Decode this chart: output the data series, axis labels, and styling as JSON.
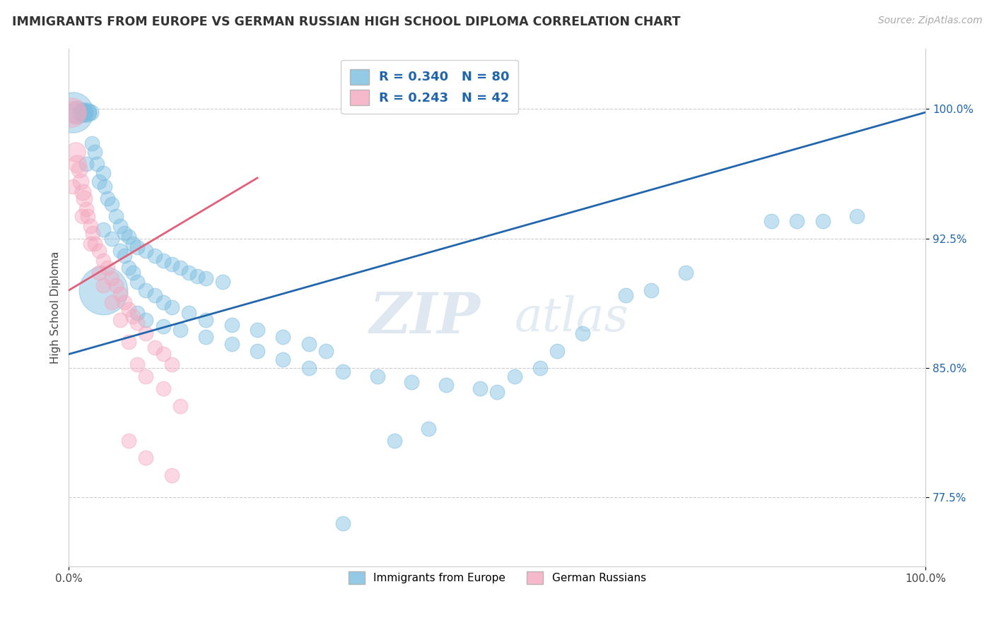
{
  "title": "IMMIGRANTS FROM EUROPE VS GERMAN RUSSIAN HIGH SCHOOL DIPLOMA CORRELATION CHART",
  "source": "Source: ZipAtlas.com",
  "ylabel": "High School Diploma",
  "ytick_labels": [
    "77.5%",
    "85.0%",
    "92.5%",
    "100.0%"
  ],
  "ytick_values": [
    0.775,
    0.85,
    0.925,
    1.0
  ],
  "xtick_labels": [
    "0.0%",
    "100.0%"
  ],
  "xtick_values": [
    0.0,
    1.0
  ],
  "xmin": 0.0,
  "xmax": 1.0,
  "ymin": 0.735,
  "ymax": 1.035,
  "blue_r": 0.34,
  "blue_n": 80,
  "pink_r": 0.243,
  "pink_n": 42,
  "legend_label_blue": "Immigrants from Europe",
  "legend_label_pink": "German Russians",
  "blue_color": "#7bbde0",
  "pink_color": "#f4a8bf",
  "blue_line_color": "#2166ac",
  "pink_line_color": "#e0607a",
  "watermark_zip": "ZIP",
  "watermark_atlas": "atlas",
  "background_color": "#ffffff",
  "blue_line_x": [
    0.0,
    1.0
  ],
  "blue_line_y": [
    0.858,
    0.998
  ],
  "pink_line_x": [
    0.0,
    0.22
  ],
  "pink_line_y": [
    0.895,
    0.96
  ],
  "blue_points": [
    [
      0.005,
      0.998,
      25
    ],
    [
      0.01,
      0.998,
      14
    ],
    [
      0.015,
      0.998,
      12
    ],
    [
      0.016,
      0.998,
      11
    ],
    [
      0.018,
      0.998,
      10
    ],
    [
      0.02,
      0.998,
      12
    ],
    [
      0.023,
      0.998,
      10
    ],
    [
      0.025,
      0.998,
      10
    ],
    [
      0.027,
      0.98,
      9
    ],
    [
      0.03,
      0.975,
      9
    ],
    [
      0.033,
      0.968,
      9
    ],
    [
      0.04,
      0.963,
      9
    ],
    [
      0.042,
      0.955,
      9
    ],
    [
      0.045,
      0.948,
      9
    ],
    [
      0.05,
      0.945,
      9
    ],
    [
      0.055,
      0.938,
      9
    ],
    [
      0.06,
      0.932,
      9
    ],
    [
      0.065,
      0.928,
      9
    ],
    [
      0.07,
      0.926,
      9
    ],
    [
      0.075,
      0.922,
      9
    ],
    [
      0.08,
      0.92,
      9
    ],
    [
      0.09,
      0.918,
      9
    ],
    [
      0.1,
      0.915,
      9
    ],
    [
      0.11,
      0.912,
      9
    ],
    [
      0.12,
      0.91,
      9
    ],
    [
      0.13,
      0.908,
      9
    ],
    [
      0.14,
      0.905,
      9
    ],
    [
      0.15,
      0.903,
      9
    ],
    [
      0.16,
      0.902,
      9
    ],
    [
      0.18,
      0.9,
      9
    ],
    [
      0.02,
      0.968,
      9
    ],
    [
      0.035,
      0.958,
      9
    ],
    [
      0.04,
      0.93,
      9
    ],
    [
      0.05,
      0.925,
      9
    ],
    [
      0.06,
      0.918,
      9
    ],
    [
      0.065,
      0.915,
      9
    ],
    [
      0.07,
      0.908,
      9
    ],
    [
      0.075,
      0.905,
      9
    ],
    [
      0.08,
      0.9,
      9
    ],
    [
      0.09,
      0.895,
      9
    ],
    [
      0.1,
      0.892,
      9
    ],
    [
      0.11,
      0.888,
      9
    ],
    [
      0.12,
      0.885,
      9
    ],
    [
      0.14,
      0.882,
      9
    ],
    [
      0.16,
      0.878,
      9
    ],
    [
      0.19,
      0.875,
      9
    ],
    [
      0.22,
      0.872,
      9
    ],
    [
      0.25,
      0.868,
      9
    ],
    [
      0.28,
      0.864,
      9
    ],
    [
      0.3,
      0.86,
      9
    ],
    [
      0.04,
      0.895,
      30
    ],
    [
      0.08,
      0.882,
      9
    ],
    [
      0.09,
      0.878,
      9
    ],
    [
      0.11,
      0.874,
      9
    ],
    [
      0.13,
      0.872,
      9
    ],
    [
      0.16,
      0.868,
      9
    ],
    [
      0.19,
      0.864,
      9
    ],
    [
      0.22,
      0.86,
      9
    ],
    [
      0.25,
      0.855,
      9
    ],
    [
      0.28,
      0.85,
      9
    ],
    [
      0.32,
      0.848,
      9
    ],
    [
      0.36,
      0.845,
      9
    ],
    [
      0.4,
      0.842,
      9
    ],
    [
      0.44,
      0.84,
      9
    ],
    [
      0.48,
      0.838,
      9
    ],
    [
      0.5,
      0.836,
      9
    ],
    [
      0.52,
      0.845,
      9
    ],
    [
      0.55,
      0.85,
      9
    ],
    [
      0.57,
      0.86,
      9
    ],
    [
      0.6,
      0.87,
      9
    ],
    [
      0.65,
      0.892,
      9
    ],
    [
      0.68,
      0.895,
      9
    ],
    [
      0.72,
      0.905,
      9
    ],
    [
      0.82,
      0.935,
      9
    ],
    [
      0.85,
      0.935,
      9
    ],
    [
      0.88,
      0.935,
      9
    ],
    [
      0.92,
      0.938,
      9
    ],
    [
      0.38,
      0.808,
      9
    ],
    [
      0.42,
      0.815,
      9
    ],
    [
      0.32,
      0.76,
      9
    ]
  ],
  "pink_points": [
    [
      0.003,
      0.998,
      18
    ],
    [
      0.006,
      0.998,
      14
    ],
    [
      0.008,
      0.975,
      12
    ],
    [
      0.01,
      0.968,
      11
    ],
    [
      0.012,
      0.965,
      10
    ],
    [
      0.014,
      0.958,
      10
    ],
    [
      0.016,
      0.952,
      10
    ],
    [
      0.018,
      0.948,
      10
    ],
    [
      0.02,
      0.942,
      9
    ],
    [
      0.022,
      0.938,
      9
    ],
    [
      0.025,
      0.932,
      9
    ],
    [
      0.028,
      0.928,
      9
    ],
    [
      0.03,
      0.922,
      9
    ],
    [
      0.035,
      0.918,
      9
    ],
    [
      0.04,
      0.912,
      9
    ],
    [
      0.045,
      0.908,
      9
    ],
    [
      0.05,
      0.902,
      9
    ],
    [
      0.055,
      0.898,
      9
    ],
    [
      0.06,
      0.893,
      9
    ],
    [
      0.065,
      0.888,
      9
    ],
    [
      0.07,
      0.884,
      9
    ],
    [
      0.075,
      0.88,
      9
    ],
    [
      0.08,
      0.876,
      9
    ],
    [
      0.09,
      0.87,
      9
    ],
    [
      0.1,
      0.862,
      9
    ],
    [
      0.11,
      0.858,
      9
    ],
    [
      0.12,
      0.852,
      9
    ],
    [
      0.005,
      0.955,
      9
    ],
    [
      0.015,
      0.938,
      9
    ],
    [
      0.025,
      0.922,
      9
    ],
    [
      0.035,
      0.905,
      9
    ],
    [
      0.04,
      0.898,
      9
    ],
    [
      0.05,
      0.888,
      9
    ],
    [
      0.06,
      0.878,
      9
    ],
    [
      0.07,
      0.865,
      9
    ],
    [
      0.08,
      0.852,
      9
    ],
    [
      0.09,
      0.845,
      9
    ],
    [
      0.11,
      0.838,
      9
    ],
    [
      0.13,
      0.828,
      9
    ],
    [
      0.07,
      0.808,
      9
    ],
    [
      0.09,
      0.798,
      9
    ],
    [
      0.12,
      0.788,
      9
    ]
  ]
}
